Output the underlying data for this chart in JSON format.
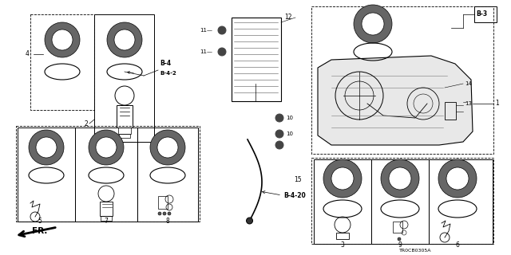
{
  "bg_color": "#ffffff",
  "line_color": "#000000",
  "diagram_code": "TR0CB0305A",
  "figsize": [
    6.4,
    3.2
  ],
  "dpi": 100
}
